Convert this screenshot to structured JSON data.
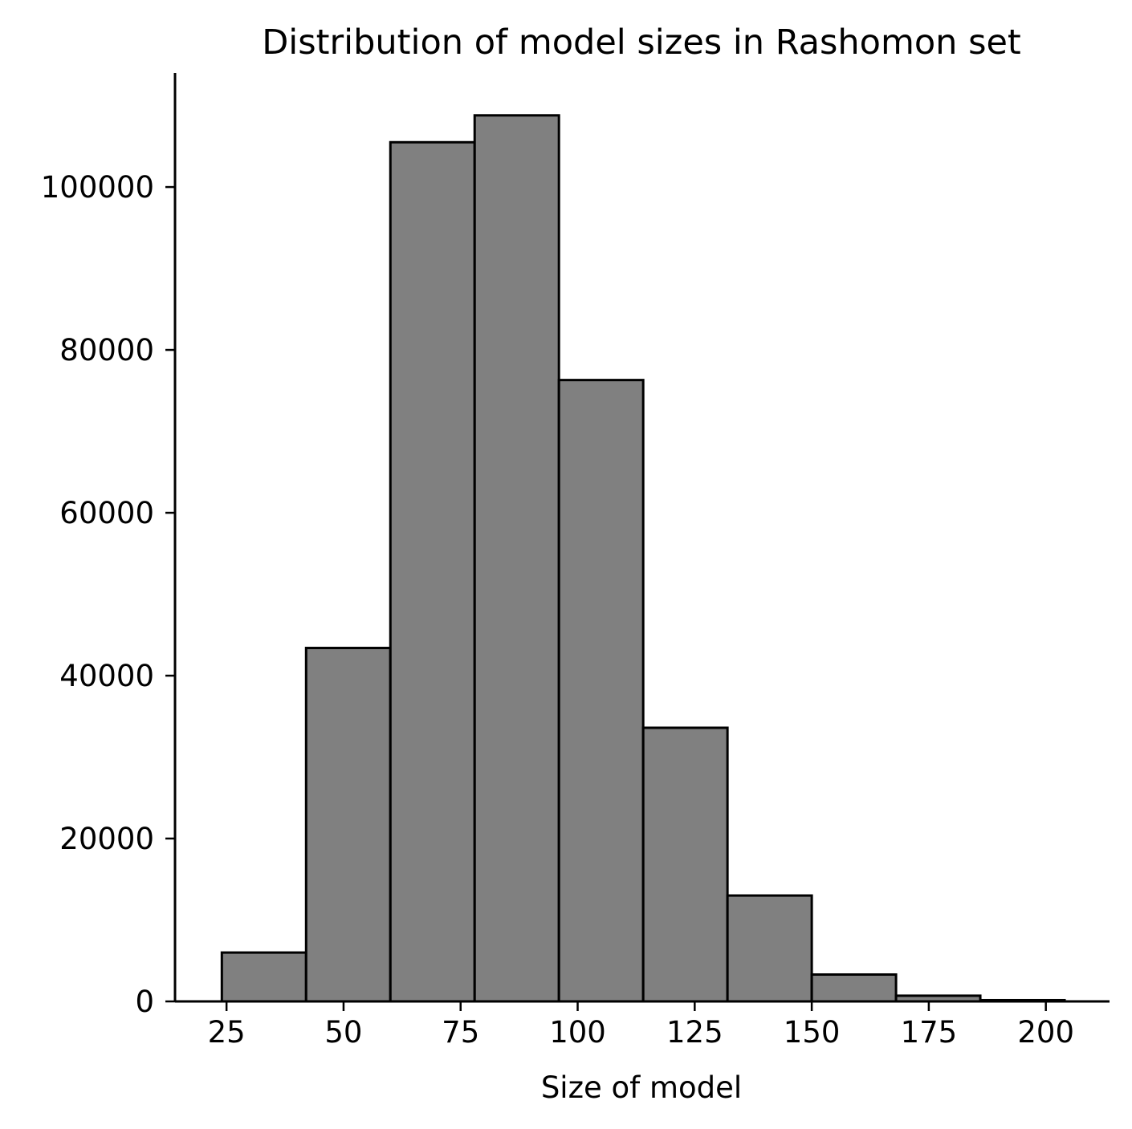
{
  "chart_data": {
    "type": "bar",
    "title": "Distribution of model sizes in Rashomon set",
    "xlabel": "Size of model",
    "ylabel": "",
    "bin_edges": [
      24,
      42,
      60,
      78,
      96,
      114,
      132,
      150,
      168,
      186,
      204
    ],
    "values": [
      6000,
      43400,
      105500,
      108800,
      76300,
      33600,
      13000,
      3300,
      700,
      150
    ],
    "xlim": [
      14.0,
      213.6
    ],
    "ylim": [
      0,
      114000
    ],
    "xticks": [
      25,
      50,
      75,
      100,
      125,
      150,
      175,
      200
    ],
    "yticks": [
      0,
      20000,
      40000,
      60000,
      80000,
      100000
    ],
    "bar_color": "#808080",
    "edge_color": "#000000",
    "grid": false,
    "legend": "none"
  }
}
